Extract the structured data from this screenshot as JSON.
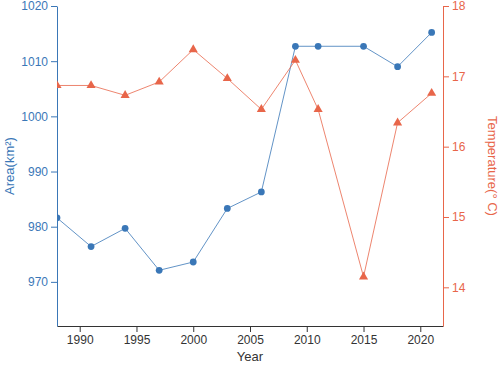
{
  "chart_data": {
    "type": "line",
    "x_label": "Year",
    "y_label": "Area(km²)",
    "y2_label": "Temperature(° C)",
    "x": [
      1988,
      1991,
      1994,
      1997,
      2000,
      2003,
      2006,
      2009,
      2011,
      2015,
      2018,
      2021
    ],
    "xlim": [
      1988,
      2022
    ],
    "xticks": [
      1990,
      1995,
      2000,
      2005,
      2010,
      2015,
      2020
    ],
    "ylim": [
      962,
      1020
    ],
    "yticks": [
      970,
      980,
      990,
      1000,
      1010,
      1020
    ],
    "y2lim": [
      13.45,
      18
    ],
    "y2ticks": [
      14,
      15,
      16,
      17,
      18
    ],
    "series": [
      {
        "name": "Area",
        "color": "#3a77b7",
        "marker": "circle",
        "line_style": "solid",
        "values": [
          981.6,
          976.4,
          979.7,
          972.1,
          973.6,
          983.3,
          986.3,
          1012.7,
          1012.7,
          1012.7,
          1009.0,
          1015.2
        ]
      },
      {
        "name": "Temperature",
        "color": "#e8664a",
        "marker": "triangle",
        "line_style": "solid",
        "axis": "y2",
        "values": [
          16.87,
          16.87,
          16.73,
          16.92,
          17.38,
          16.97,
          16.53,
          17.23,
          16.53,
          14.15,
          16.34,
          16.76
        ]
      }
    ]
  }
}
